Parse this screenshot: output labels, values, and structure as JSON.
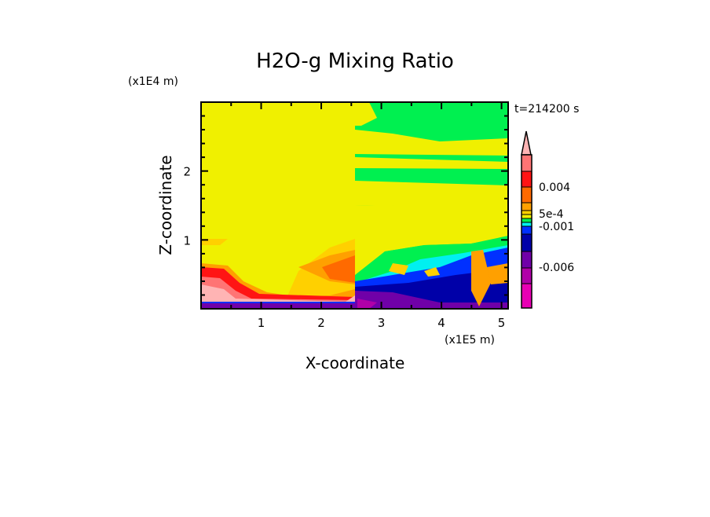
{
  "chart_data": {
    "type": "heatmap",
    "title": "H2O-g Mixing Ratio",
    "xlabel": "X-coordinate",
    "ylabel": "Z-coordinate",
    "x_scale_label": "(x1E5 m)",
    "y_scale_label": "(x1E4 m)",
    "time_label": "t=214200 s",
    "xlim": [
      0,
      5.11
    ],
    "ylim": [
      0,
      3.0
    ],
    "x_ticks": [
      "1",
      "2",
      "3",
      "4",
      "5"
    ],
    "y_ticks": [
      "1",
      "2"
    ],
    "colorbar": {
      "labels": [
        {
          "text": "0.004",
          "value": 0.004
        },
        {
          "text": "5e-4",
          "value": 0.0005
        },
        {
          "text": "-0.001",
          "value": -0.001
        },
        {
          "text": "-0.006",
          "value": -0.006
        }
      ],
      "colors": [
        "#ffb4b4",
        "#ff7474",
        "#ff1414",
        "#ff6a00",
        "#ffa000",
        "#ffd000",
        "#f0f000",
        "#00f050",
        "#00f0f0",
        "#0030ff",
        "#0000a8",
        "#7000a8",
        "#b000a8",
        "#e800b4"
      ]
    }
  }
}
